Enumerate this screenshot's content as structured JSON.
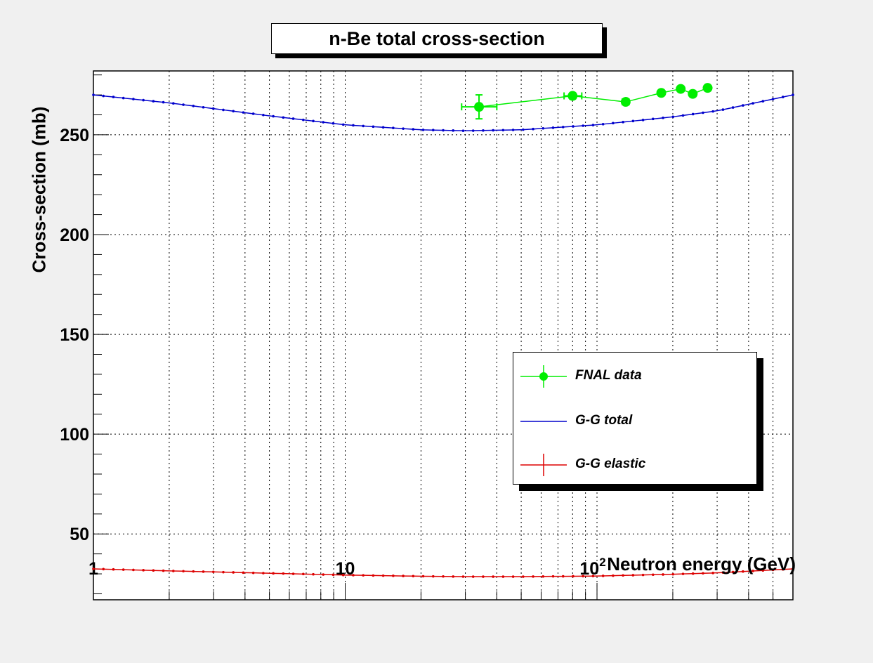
{
  "chart_data": {
    "type": "line",
    "title": "n-Be total cross-section",
    "xlabel": "Neutron energy (GeV)",
    "ylabel": "Cross-section (mb)",
    "x_scale": "log",
    "xlim": [
      1,
      600
    ],
    "ylim": [
      17,
      282
    ],
    "x_tick_labels": [
      "1",
      "10",
      "10^2"
    ],
    "y_tick_labels": [
      "50",
      "100",
      "150",
      "200",
      "250"
    ],
    "grid": true,
    "legend_position": "center-right",
    "series": [
      {
        "name": "FNAL data",
        "color": "#00ee00",
        "style": "points-with-errors",
        "points": [
          {
            "x": 34,
            "y": 264,
            "xerr": [
              29,
              40
            ],
            "yerr": 6
          },
          {
            "x": 80,
            "y": 269.5,
            "xerr": [
              74,
              87
            ],
            "yerr": 1.5
          },
          {
            "x": 130,
            "y": 266.5,
            "xerr": [
              126,
              134
            ],
            "yerr": 1
          },
          {
            "x": 180,
            "y": 271,
            "xerr": [
              180,
              180
            ],
            "yerr": 1
          },
          {
            "x": 215,
            "y": 273,
            "xerr": [
              215,
              215
            ],
            "yerr": 1
          },
          {
            "x": 240,
            "y": 270.5,
            "xerr": [
              240,
              240
            ],
            "yerr": 1
          },
          {
            "x": 275,
            "y": 273.5,
            "xerr": [
              275,
              275
            ],
            "yerr": 1
          }
        ]
      },
      {
        "name": "G-G total",
        "color": "#0000cc",
        "style": "line-with-dots",
        "x": [
          1,
          2,
          5,
          10,
          20,
          30,
          50,
          100,
          200,
          300,
          600
        ],
        "y": [
          270,
          266,
          259.5,
          255,
          252.5,
          252,
          252.5,
          255,
          259,
          262,
          270
        ]
      },
      {
        "name": "G-G elastic",
        "color": "#dd0000",
        "style": "line-with-dots",
        "x": [
          1,
          2,
          5,
          10,
          20,
          30,
          50,
          100,
          200,
          300,
          600
        ],
        "y": [
          32.5,
          31.5,
          30.3,
          29.4,
          28.8,
          28.6,
          28.6,
          28.9,
          29.8,
          30.5,
          32.5
        ]
      }
    ]
  }
}
